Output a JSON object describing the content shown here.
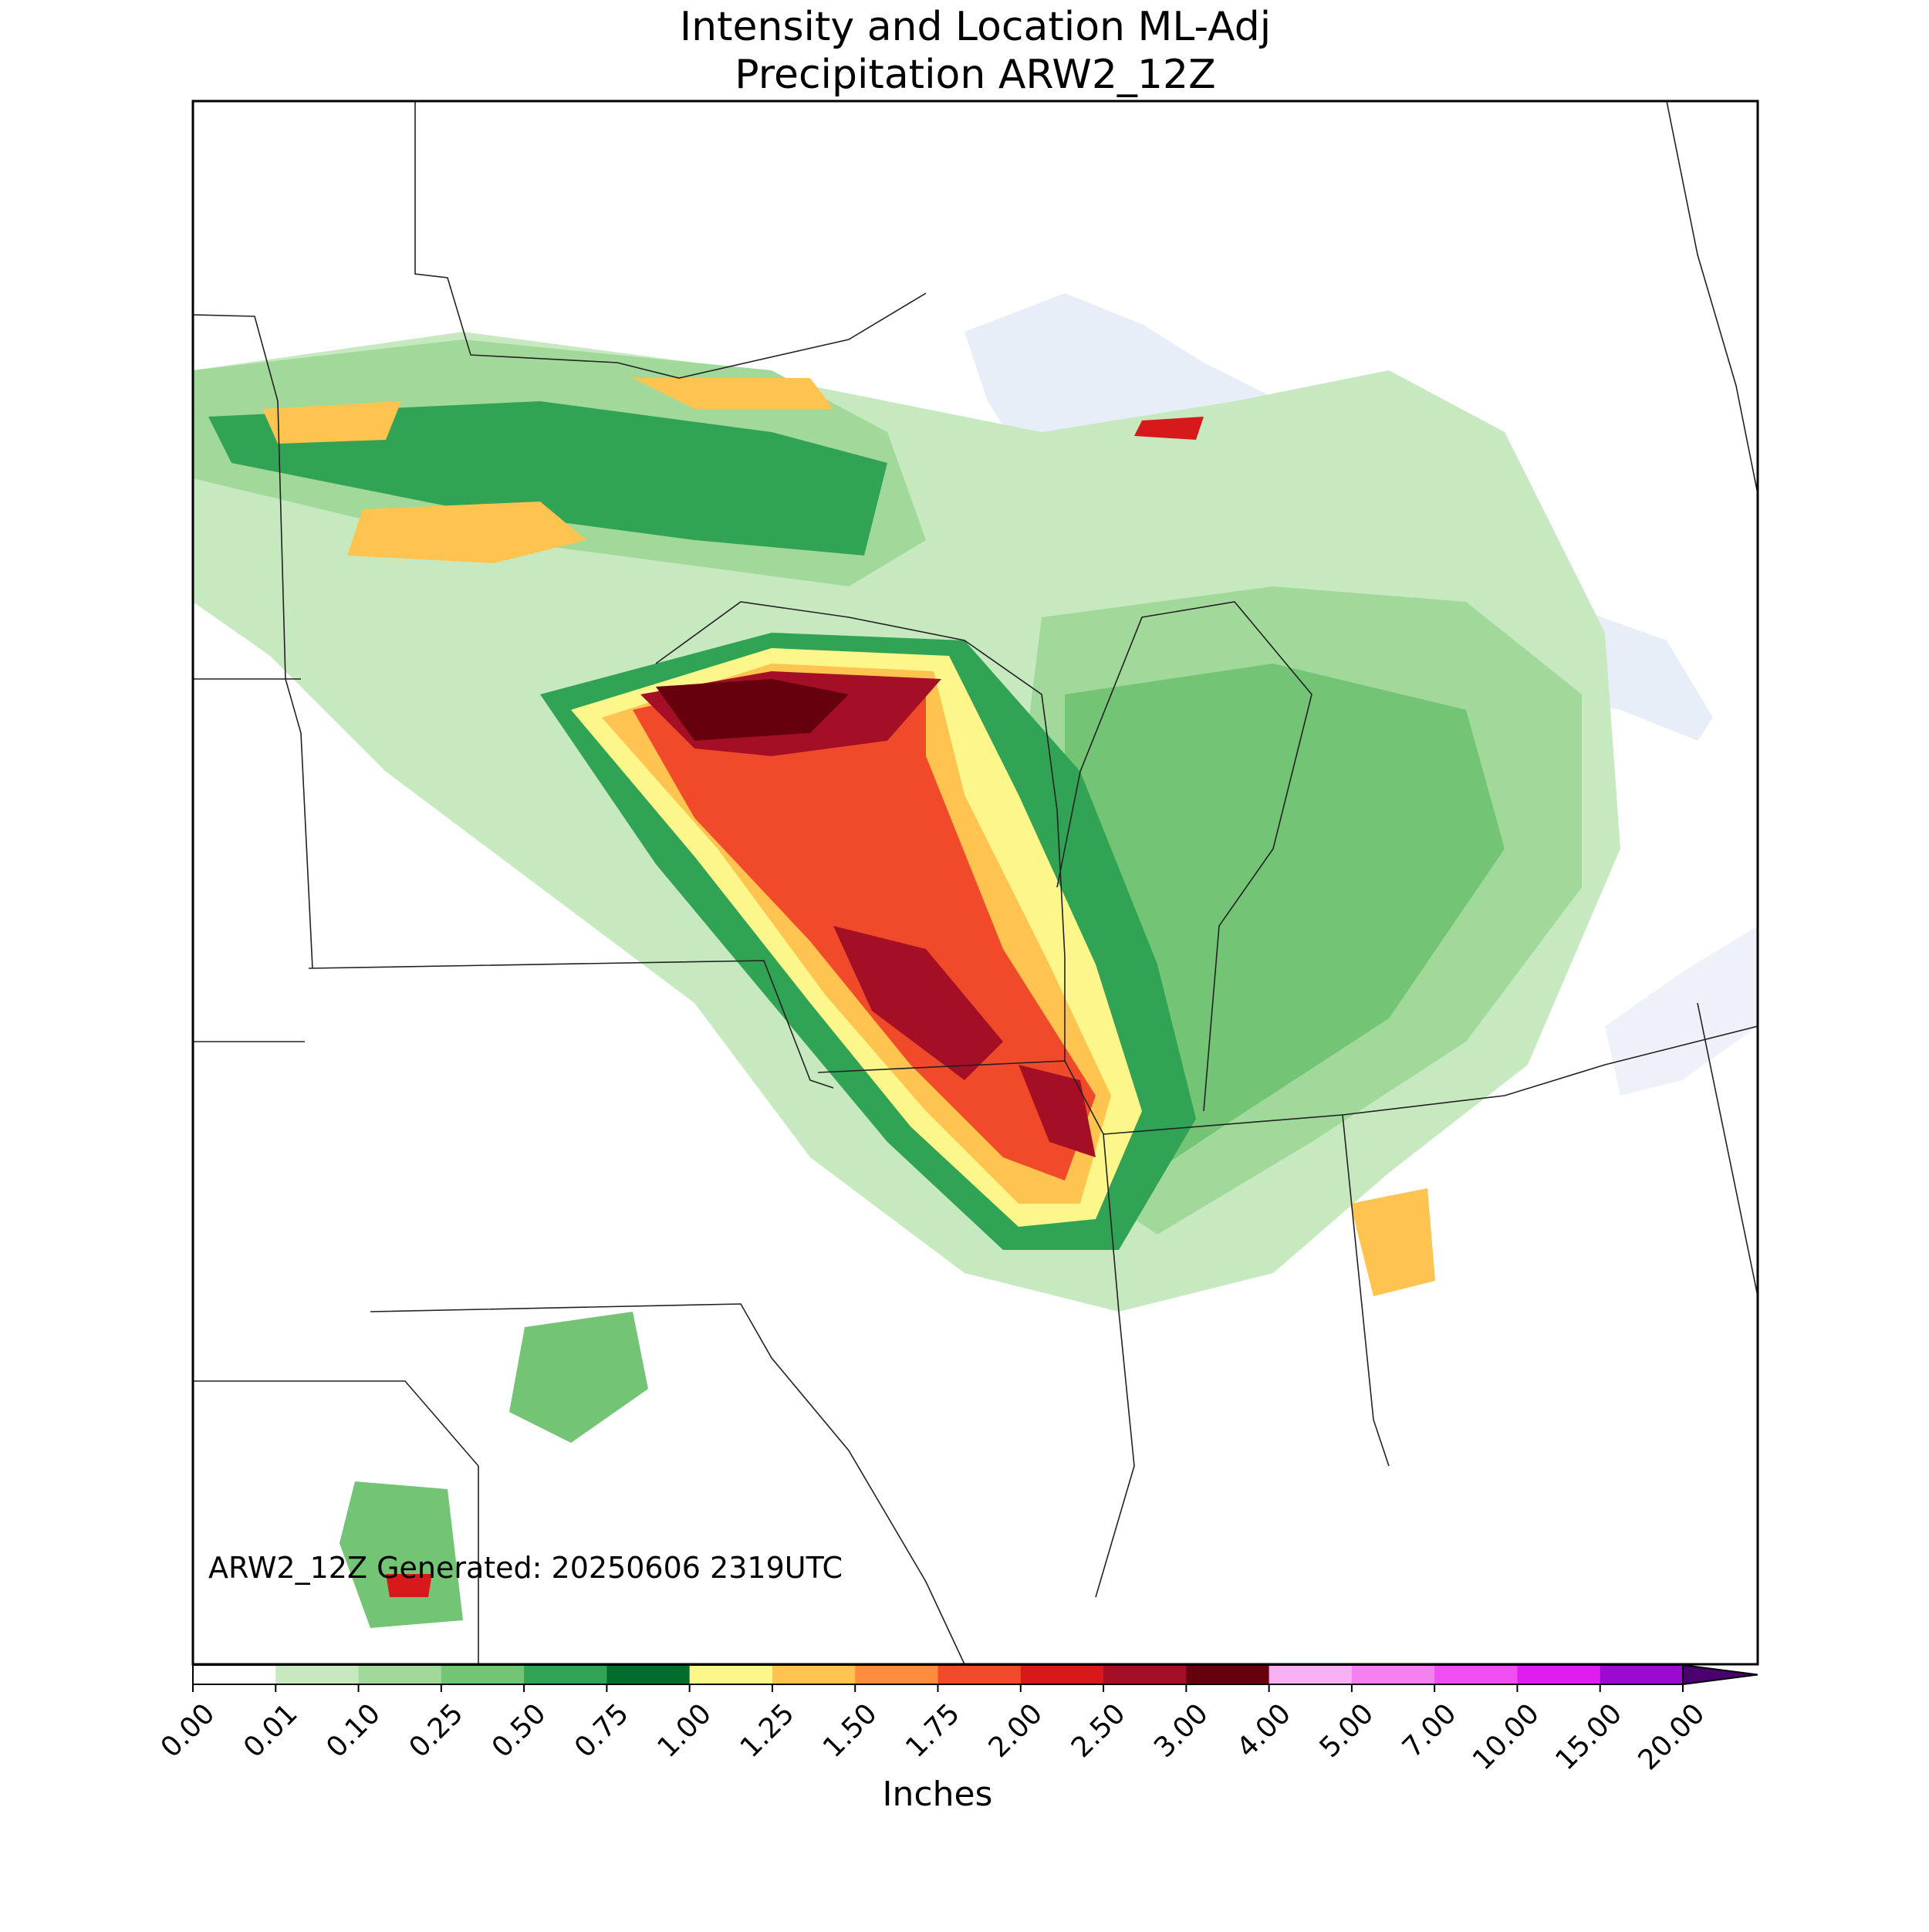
{
  "title": [
    "Intensity and Location ML-Adj",
    "Precipitation ARW2_12Z"
  ],
  "annotation": "ARW2_12Z Generated: 20250606 2319UTC",
  "colorbar": {
    "label": "Inches",
    "ticks": [
      {
        "value": 0,
        "label": "0.00"
      },
      {
        "value": 0.01,
        "label": "0.01"
      },
      {
        "value": 0.1,
        "label": "0.10"
      },
      {
        "value": 0.25,
        "label": "0.25"
      },
      {
        "value": 0.5,
        "label": "0.50"
      },
      {
        "value": 0.75,
        "label": "0.75"
      },
      {
        "value": 1,
        "label": "1.00"
      },
      {
        "value": 1.25,
        "label": "1.25"
      },
      {
        "value": 1.5,
        "label": "1.50"
      },
      {
        "value": 1.75,
        "label": "1.75"
      },
      {
        "value": 2,
        "label": "2.00"
      },
      {
        "value": 2.5,
        "label": "2.50"
      },
      {
        "value": 3,
        "label": "3.00"
      },
      {
        "value": 4,
        "label": "4.00"
      },
      {
        "value": 5,
        "label": "5.00"
      },
      {
        "value": 7,
        "label": "7.00"
      },
      {
        "value": 10,
        "label": "10.00"
      },
      {
        "value": 15,
        "label": "15.00"
      },
      {
        "value": 20,
        "label": "20.00"
      }
    ],
    "colors": [
      "#ffffff",
      "#c7e9c0",
      "#a1d99b",
      "#74c476",
      "#31a354",
      "#006d2c",
      "#fdf68a",
      "#fec44f",
      "#fd8d3c",
      "#f04a2a",
      "#d7191c",
      "#a50f26",
      "#67000d",
      "#f7b0f2",
      "#f580f0",
      "#ef4ef0",
      "#df1df0",
      "#9a0ad0"
    ],
    "extend_color": "#4b0070"
  }
}
